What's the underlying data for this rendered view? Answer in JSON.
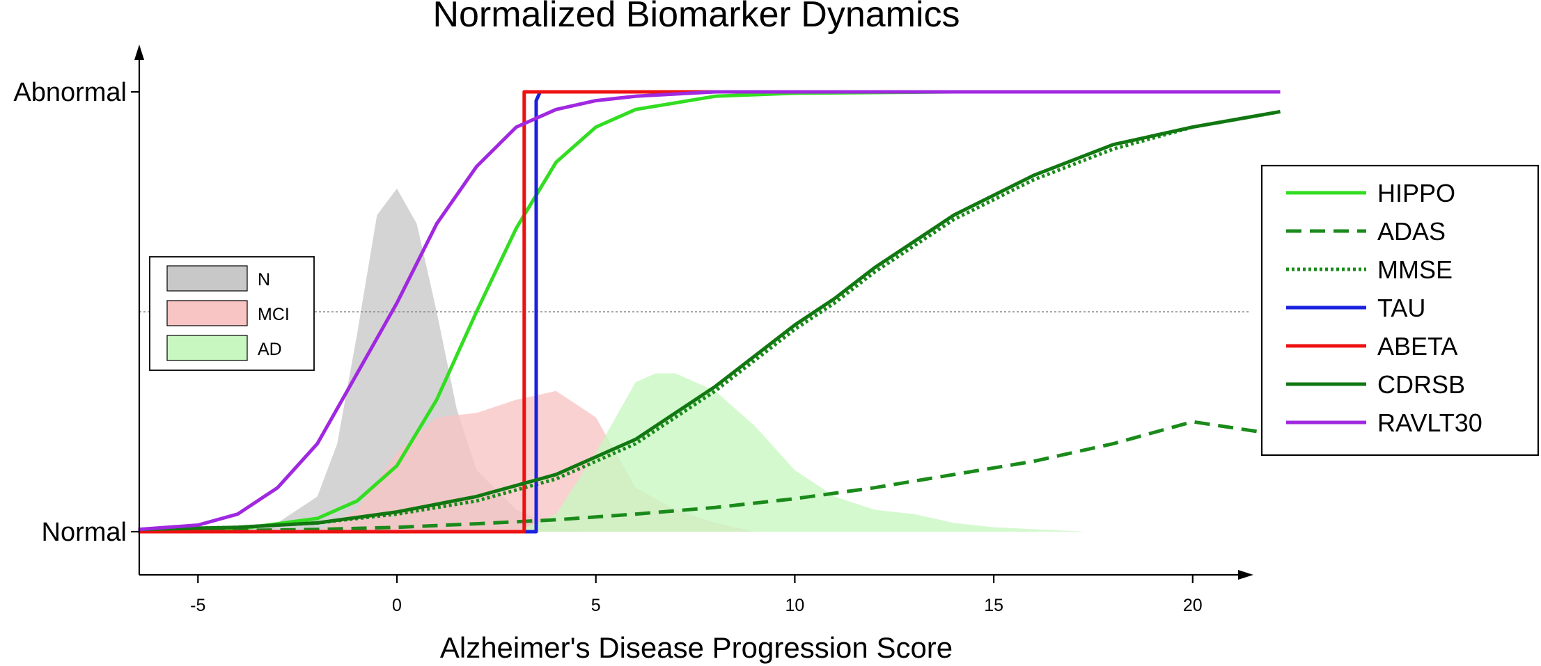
{
  "chart_data": {
    "type": "line",
    "title": "Normalized Biomarker Dynamics",
    "xlabel": "Alzheimer's Disease Progression Score",
    "ylabel": "",
    "xlim": [
      -6.5,
      22.2
    ],
    "ylim": [
      0,
      1
    ],
    "x_ticks": [
      -5,
      0,
      5,
      10,
      15,
      20
    ],
    "y_tick_labels": [
      {
        "value": 0,
        "label": "Normal"
      },
      {
        "value": 1,
        "label": "Abnormal"
      }
    ],
    "reference_line": {
      "y": 0.5,
      "style": "dotted",
      "color": "#888888"
    },
    "grid": false,
    "legend_curves_position": "right",
    "legend_groups_position": "left",
    "series": [
      {
        "name": "HIPPO",
        "color": "#33dd22",
        "style": "solid",
        "x": [
          -6.5,
          -4,
          -2,
          -1,
          0,
          1,
          2,
          3,
          4,
          5,
          6,
          8,
          10,
          14,
          22
        ],
        "y": [
          0.001,
          0.006,
          0.03,
          0.07,
          0.15,
          0.3,
          0.5,
          0.69,
          0.84,
          0.92,
          0.96,
          0.99,
          0.997,
          1.0,
          1.0
        ]
      },
      {
        "name": "ADAS",
        "color": "#1a8a1a",
        "style": "dashed",
        "x": [
          -6.5,
          -2,
          0,
          2,
          4,
          6,
          8,
          10,
          12,
          14,
          16,
          18,
          20,
          22.2
        ],
        "y": [
          0.0,
          0.005,
          0.01,
          0.018,
          0.027,
          0.04,
          0.055,
          0.075,
          0.1,
          0.13,
          0.16,
          0.2,
          0.25,
          0.22
        ]
      },
      {
        "name": "MMSE",
        "color": "#1a8a1a",
        "style": "dotted",
        "x": [
          -6.5,
          -4,
          -2,
          0,
          2,
          4,
          6,
          8,
          10,
          11,
          12,
          14,
          16,
          18,
          20,
          22.2
        ],
        "y": [
          0.005,
          0.01,
          0.02,
          0.04,
          0.07,
          0.12,
          0.2,
          0.32,
          0.46,
          0.52,
          0.59,
          0.71,
          0.8,
          0.87,
          0.92,
          0.955
        ]
      },
      {
        "name": "TAU",
        "color": "#1a22dd",
        "style": "solid",
        "x": [
          -6.5,
          3.35,
          3.5,
          3.5,
          3.6,
          22.2
        ],
        "y": [
          0.0,
          0.0,
          0.0,
          0.98,
          1.0,
          1.0
        ]
      },
      {
        "name": "ABETA",
        "color": "#ee1111",
        "style": "solid",
        "x": [
          -6.5,
          3.2,
          3.2,
          22.2
        ],
        "y": [
          0.0,
          0.0,
          1.0,
          1.0
        ]
      },
      {
        "name": "CDRSB",
        "color": "#117711",
        "style": "solid",
        "x": [
          -6.5,
          -4,
          -2,
          0,
          2,
          4,
          6,
          8,
          10,
          11,
          12,
          14,
          16,
          18,
          20,
          22.2
        ],
        "y": [
          0.005,
          0.01,
          0.02,
          0.045,
          0.08,
          0.13,
          0.21,
          0.33,
          0.47,
          0.53,
          0.6,
          0.72,
          0.81,
          0.88,
          0.92,
          0.955
        ]
      },
      {
        "name": "RAVLT30",
        "color": "#a028e0",
        "style": "solid",
        "x": [
          -6.5,
          -5,
          -4,
          -3,
          -2,
          -1,
          0,
          1,
          2,
          3,
          4,
          5,
          6,
          8,
          10,
          22.2
        ],
        "y": [
          0.005,
          0.015,
          0.04,
          0.1,
          0.2,
          0.36,
          0.52,
          0.7,
          0.83,
          0.92,
          0.96,
          0.98,
          0.99,
          1.0,
          1.0,
          1.0
        ]
      }
    ],
    "groups": [
      {
        "name": "N",
        "color": "#c8c8c8",
        "x": [
          -6.5,
          -3,
          -2,
          -1.5,
          -1,
          -0.5,
          0,
          0.5,
          1,
          1.5,
          2,
          3,
          4,
          5
        ],
        "y": [
          0,
          0.02,
          0.08,
          0.2,
          0.45,
          0.72,
          0.78,
          0.7,
          0.5,
          0.28,
          0.14,
          0.05,
          0.01,
          0
        ]
      },
      {
        "name": "MCI",
        "color": "#f9c4c4",
        "x": [
          -2,
          -1,
          0,
          1,
          2,
          3,
          4,
          5,
          6,
          7,
          8,
          9
        ],
        "y": [
          0,
          0.05,
          0.18,
          0.26,
          0.27,
          0.3,
          0.32,
          0.26,
          0.1,
          0.05,
          0.02,
          0
        ]
      },
      {
        "name": "AD",
        "color": "#c8f7c0",
        "x": [
          3,
          4,
          5,
          6,
          6.5,
          7,
          8,
          9,
          10,
          11,
          12,
          13,
          14,
          15,
          17.3
        ],
        "y": [
          0,
          0.04,
          0.18,
          0.34,
          0.36,
          0.36,
          0.32,
          0.24,
          0.14,
          0.08,
          0.05,
          0.04,
          0.02,
          0.01,
          0
        ]
      }
    ]
  }
}
